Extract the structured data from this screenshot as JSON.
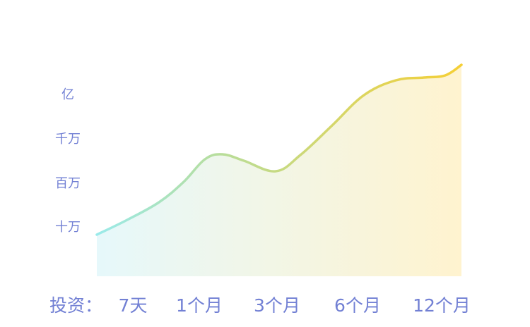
{
  "colors": {
    "label": "#7280d4",
    "line_start": "#9aeaea",
    "line_mid": "#b9dd98",
    "line_end": "#f5cf35",
    "fill_start": "#e6f8fb",
    "fill_end": "#fff3cf"
  },
  "chart_data": {
    "type": "area",
    "xlabel": "投资：",
    "ylabel": "",
    "title": "",
    "x": [
      "7天",
      "1个月",
      "3个月",
      "6个月",
      "12个月"
    ],
    "y_ticks": [
      "十万",
      "百万",
      "千万",
      "亿"
    ],
    "y_range": [
      "十万",
      "亿"
    ],
    "grid": false,
    "legend": "none",
    "series": [
      {
        "points": [
          {
            "x": "7天",
            "y": "十万"
          },
          {
            "x": "1个月",
            "y": "百万"
          },
          {
            "x": "3个月",
            "y": "百万"
          },
          {
            "x": "6个月",
            "y": "千万"
          },
          {
            "x": "12个月",
            "y": "亿"
          }
        ]
      }
    ]
  }
}
